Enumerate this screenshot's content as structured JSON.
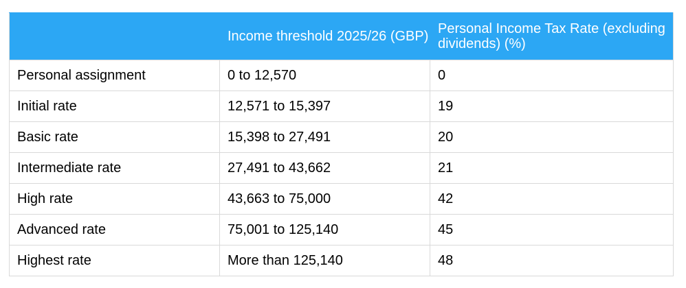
{
  "table": {
    "headers": [
      "",
      "Income threshold 2025/26 (GBP)",
      "Personal Income Tax Rate (excluding dividends) (%)"
    ],
    "rows": [
      [
        "Personal assignment",
        "0 to 12,570",
        "0"
      ],
      [
        "Initial rate",
        "12,571 to 15,397",
        "19"
      ],
      [
        "Basic rate",
        "15,398 to 27,491",
        "20"
      ],
      [
        "Intermediate rate",
        "27,491 to 43,662",
        "21"
      ],
      [
        "High rate",
        "43,663 to 75,000",
        "42"
      ],
      [
        "Advanced rate",
        "75,001 to 125,140",
        "45"
      ],
      [
        "Highest rate",
        "More than 125,140",
        "48"
      ]
    ]
  },
  "colors": {
    "header_background": "#2ca7f4",
    "header_text": "#ffffff",
    "grid_lines": "#d9d9d9"
  }
}
